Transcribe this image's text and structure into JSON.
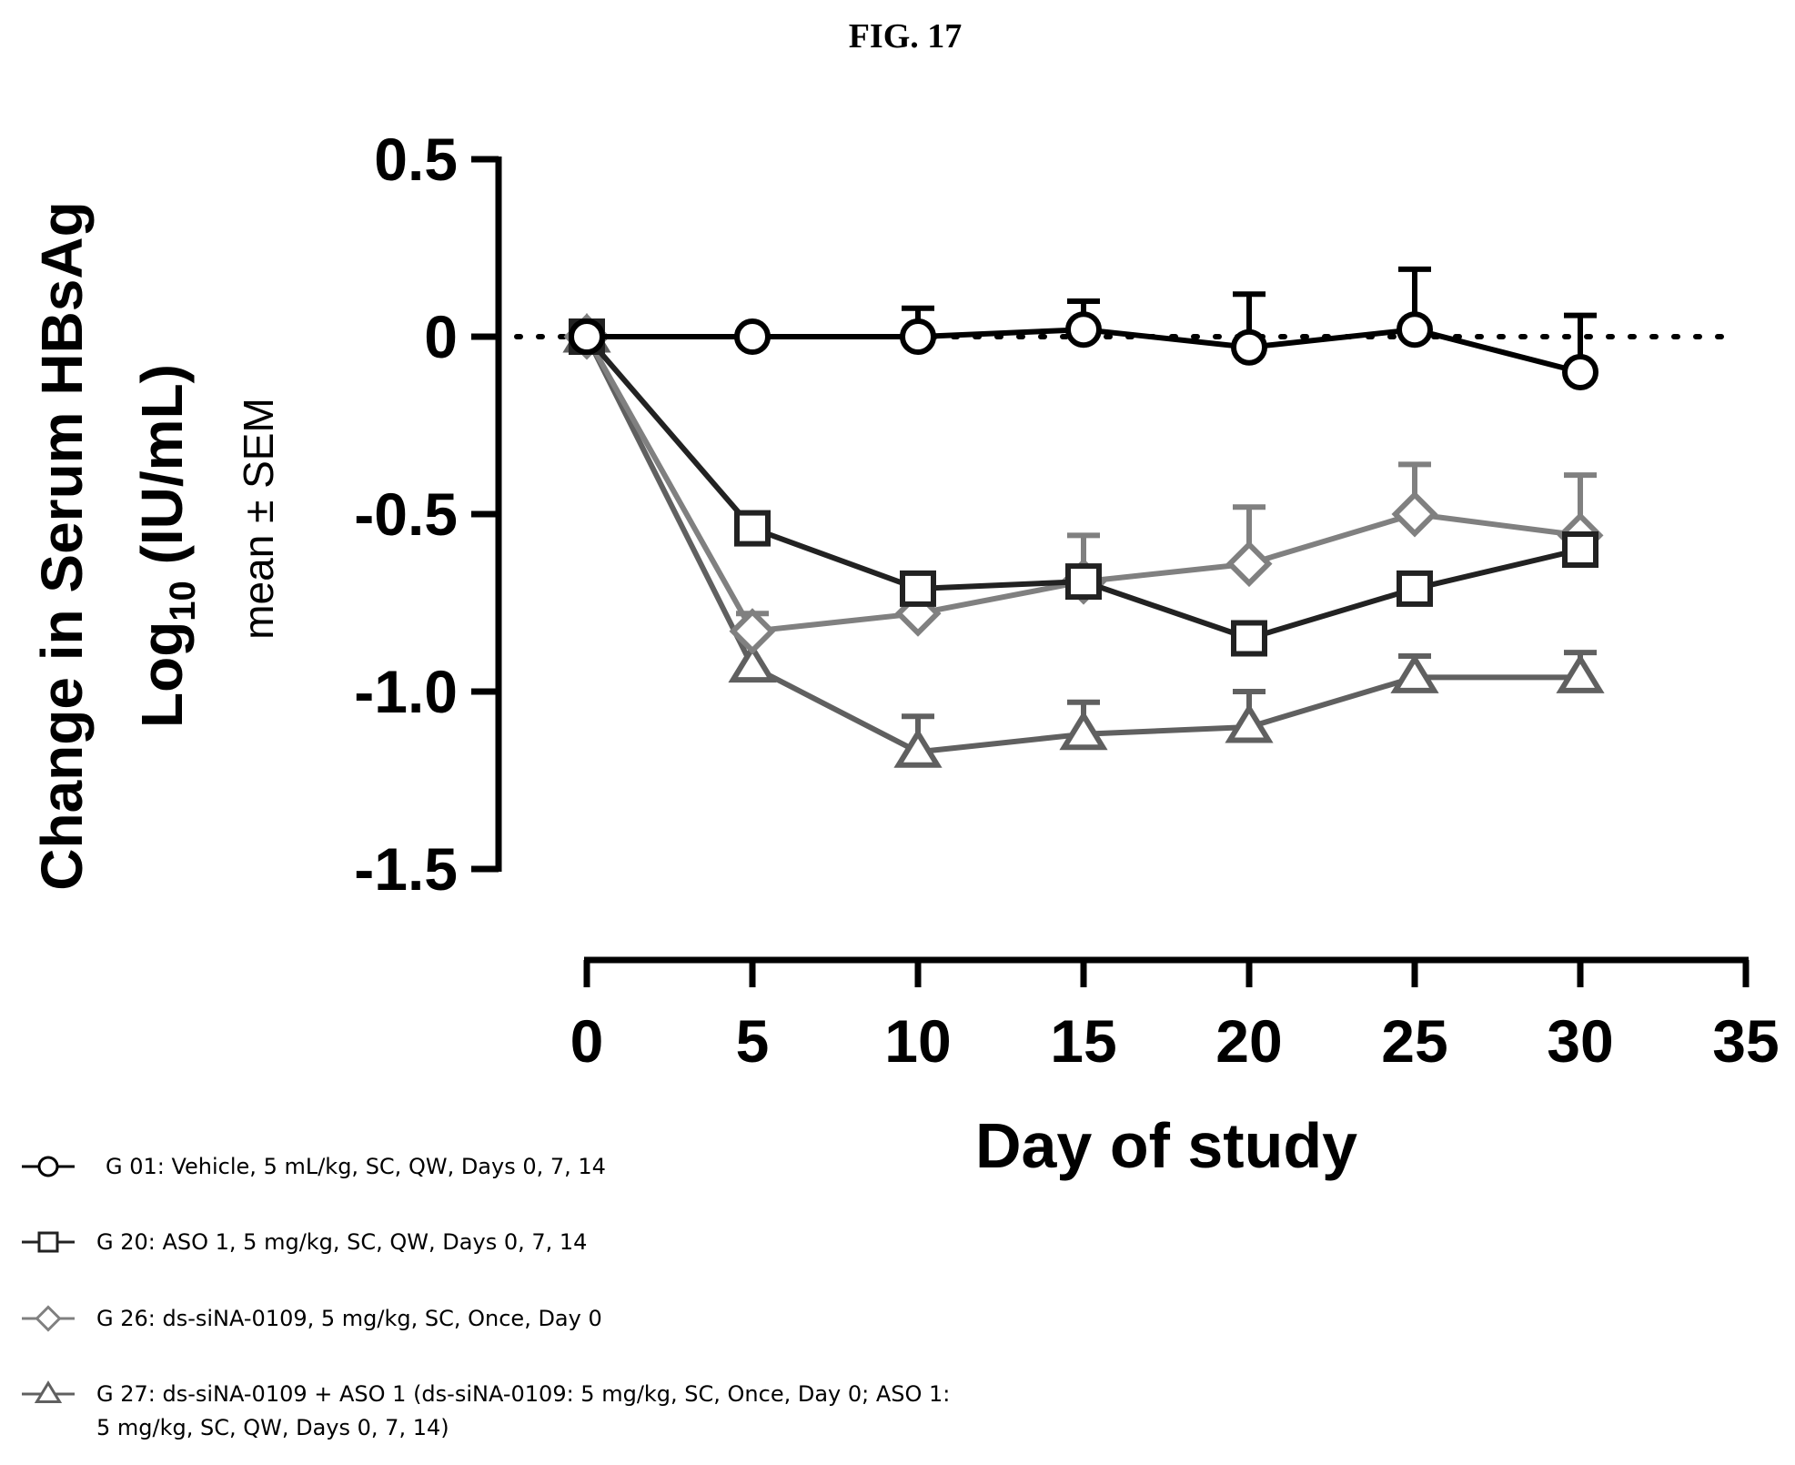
{
  "figure_label": "FIG. 17",
  "chart_data": {
    "type": "line",
    "title": "",
    "xlabel": "Day of study",
    "ylabel": {
      "line1": "Change in Serum HBsAg",
      "line2_prefix": "Log",
      "line2_subscript": "10",
      "line2_suffix": " (IU/mL)",
      "line3": "mean ± SEM"
    },
    "xlim": [
      0,
      35
    ],
    "ylim": [
      -1.5,
      0.5
    ],
    "x_ticks": [
      0,
      5,
      10,
      15,
      20,
      25,
      30,
      35
    ],
    "y_ticks": [
      0.5,
      0,
      -0.5,
      -1.0,
      -1.5
    ],
    "x_tick_labels": [
      "0",
      "5",
      "10",
      "15",
      "20",
      "25",
      "30",
      "35"
    ],
    "y_tick_labels": [
      "0.5",
      "0",
      "-0.5",
      "-1.0",
      "-1.5"
    ],
    "reference_line": {
      "y": 0,
      "style": "dotted"
    },
    "x": [
      0,
      5,
      10,
      15,
      20,
      25,
      30
    ],
    "series": [
      {
        "name": "G 01: Vehicle, 5 mL/kg, SC, QW, Days 0, 7, 14",
        "marker": "circle",
        "color": "#000000",
        "values": [
          0.0,
          0.0,
          0.0,
          0.02,
          -0.03,
          0.02,
          -0.1
        ],
        "sem": [
          0.0,
          0.0,
          0.08,
          0.08,
          0.15,
          0.17,
          0.16
        ]
      },
      {
        "name": "G 20: ASO 1, 5 mg/kg, SC, QW, Days 0, 7, 14",
        "marker": "square",
        "color": "#222222",
        "values": [
          0.0,
          -0.54,
          -0.71,
          -0.69,
          -0.85,
          -0.71,
          -0.6
        ],
        "sem": [
          0.0,
          0.0,
          0.0,
          0.0,
          0.0,
          0.0,
          0.0
        ]
      },
      {
        "name": "G 26: ds-siNA-0109, 5 mg/kg, SC, Once, Day 0",
        "marker": "diamond",
        "color": "#808080",
        "values": [
          0.0,
          -0.83,
          -0.78,
          -0.69,
          -0.64,
          -0.5,
          -0.56
        ],
        "sem": [
          0.0,
          0.05,
          0.0,
          0.13,
          0.16,
          0.14,
          0.17
        ]
      },
      {
        "name": "G 27: ds-siNA-0109 + ASO 1 (ds-siNA-0109: 5 mg/kg, SC, Once, Day 0; ASO 1: 5 mg/kg, SC, QW, Days 0, 7, 14)",
        "marker": "triangle",
        "color": "#606060",
        "values": [
          0.0,
          -0.93,
          -1.17,
          -1.12,
          -1.1,
          -0.96,
          -0.96
        ],
        "sem": [
          0.0,
          0.0,
          0.1,
          0.09,
          0.1,
          0.06,
          0.07
        ]
      }
    ],
    "legend": {
      "position": "bottom-left",
      "entries": [
        {
          "marker": "circle",
          "lines": [
            "G 01: Vehicle, 5 mL/kg, SC, QW, Days 0, 7, 14"
          ]
        },
        {
          "marker": "square",
          "lines": [
            "G 20: ASO 1, 5 mg/kg, SC, QW, Days 0, 7, 14"
          ]
        },
        {
          "marker": "diamond",
          "lines": [
            "G 26: ds-siNA-0109, 5 mg/kg, SC, Once, Day 0"
          ]
        },
        {
          "marker": "triangle",
          "lines": [
            "G 27: ds-siNA-0109 + ASO 1 (ds-siNA-0109: 5 mg/kg, SC, Once, Day 0; ASO 1:",
            "5 mg/kg, SC, QW, Days 0, 7, 14)"
          ]
        }
      ]
    }
  }
}
